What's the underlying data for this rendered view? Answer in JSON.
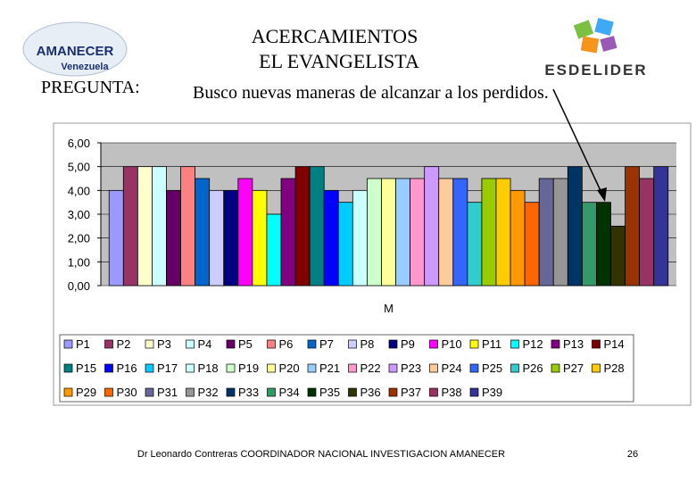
{
  "header": {
    "logo_left": [
      "AMANECER",
      "Venezuela"
    ],
    "logo_right": "ESDELIDER",
    "title_lines": [
      "ACERCAMIENTOS",
      "EL EVANGELISTA"
    ],
    "question_label": "PREGUNTA:",
    "question": "Busco nuevas maneras de alcanzar a los perdidos."
  },
  "footer": {
    "text": "Dr Leonardo Contreras   COORDINADOR NACIONAL INVESTIGACION AMANECER",
    "page": "26"
  },
  "chart_data": {
    "type": "bar",
    "categories": [
      "M"
    ],
    "ylim": [
      0,
      6
    ],
    "yticks": [
      {
        "value": 0,
        "label": "0,00"
      },
      {
        "value": 1,
        "label": "1,00"
      },
      {
        "value": 2,
        "label": "2,00"
      },
      {
        "value": 3,
        "label": "3,00"
      },
      {
        "value": 4,
        "label": "4,00"
      },
      {
        "value": 5,
        "label": "5,00"
      },
      {
        "value": 6,
        "label": "6,00"
      }
    ],
    "grid": true,
    "series": [
      {
        "name": "P1",
        "color": "#9999FF",
        "values": [
          4.0
        ]
      },
      {
        "name": "P2",
        "color": "#993366",
        "values": [
          5.0
        ]
      },
      {
        "name": "P3",
        "color": "#FFFFCC",
        "values": [
          5.0
        ]
      },
      {
        "name": "P4",
        "color": "#CCFFFF",
        "values": [
          5.0
        ]
      },
      {
        "name": "P5",
        "color": "#660066",
        "values": [
          4.0
        ]
      },
      {
        "name": "P6",
        "color": "#FF8080",
        "values": [
          5.0
        ]
      },
      {
        "name": "P7",
        "color": "#0066CC",
        "values": [
          4.5
        ]
      },
      {
        "name": "P8",
        "color": "#CCCCFF",
        "values": [
          4.0
        ]
      },
      {
        "name": "P9",
        "color": "#000080",
        "values": [
          4.0
        ]
      },
      {
        "name": "P10",
        "color": "#FF00FF",
        "values": [
          4.5
        ]
      },
      {
        "name": "P11",
        "color": "#FFFF00",
        "values": [
          4.0
        ]
      },
      {
        "name": "P12",
        "color": "#00FFFF",
        "values": [
          3.0
        ]
      },
      {
        "name": "P13",
        "color": "#800080",
        "values": [
          4.5
        ]
      },
      {
        "name": "P14",
        "color": "#800000",
        "values": [
          5.0
        ]
      },
      {
        "name": "P15",
        "color": "#008080",
        "values": [
          5.0
        ]
      },
      {
        "name": "P16",
        "color": "#0000FF",
        "values": [
          4.0
        ]
      },
      {
        "name": "P17",
        "color": "#00CCFF",
        "values": [
          3.5
        ]
      },
      {
        "name": "P18",
        "color": "#CCFFFF",
        "values": [
          4.0
        ]
      },
      {
        "name": "P19",
        "color": "#CCFFCC",
        "values": [
          4.5
        ]
      },
      {
        "name": "P20",
        "color": "#FFFF99",
        "values": [
          4.5
        ]
      },
      {
        "name": "P21",
        "color": "#99CCFF",
        "values": [
          4.5
        ]
      },
      {
        "name": "P22",
        "color": "#FF99CC",
        "values": [
          4.5
        ]
      },
      {
        "name": "P23",
        "color": "#CC99FF",
        "values": [
          5.0
        ]
      },
      {
        "name": "P24",
        "color": "#FFCC99",
        "values": [
          4.5
        ]
      },
      {
        "name": "P25",
        "color": "#3366FF",
        "values": [
          4.5
        ]
      },
      {
        "name": "P26",
        "color": "#33CCCC",
        "values": [
          3.5
        ]
      },
      {
        "name": "P27",
        "color": "#99CC00",
        "values": [
          4.5
        ]
      },
      {
        "name": "P28",
        "color": "#FFCC00",
        "values": [
          4.5
        ]
      },
      {
        "name": "P29",
        "color": "#FF9900",
        "values": [
          4.0
        ]
      },
      {
        "name": "P30",
        "color": "#FF6600",
        "values": [
          3.5
        ]
      },
      {
        "name": "P31",
        "color": "#666699",
        "values": [
          4.5
        ]
      },
      {
        "name": "P32",
        "color": "#969696",
        "values": [
          4.5
        ]
      },
      {
        "name": "P33",
        "color": "#003366",
        "values": [
          5.0
        ]
      },
      {
        "name": "P34",
        "color": "#339966",
        "values": [
          3.5
        ]
      },
      {
        "name": "P35",
        "color": "#003300",
        "values": [
          3.5
        ]
      },
      {
        "name": "P36",
        "color": "#333300",
        "values": [
          2.5
        ]
      },
      {
        "name": "P37",
        "color": "#993300",
        "values": [
          5.0
        ]
      },
      {
        "name": "P38",
        "color": "#993366",
        "values": [
          4.5
        ]
      },
      {
        "name": "P39",
        "color": "#333399",
        "values": [
          5.0
        ]
      }
    ]
  }
}
